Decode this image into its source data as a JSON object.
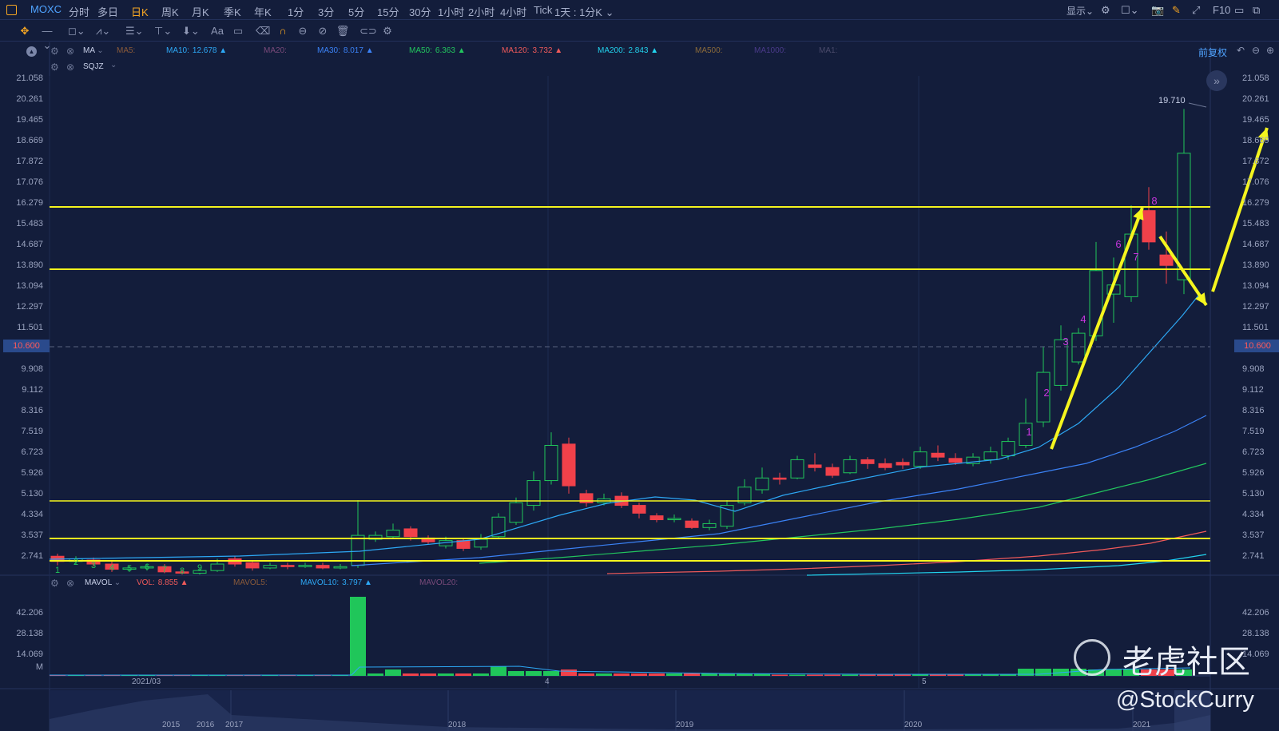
{
  "toolbar": {
    "symbol": "MOXC",
    "timeframes": [
      {
        "label": "分时",
        "active": false
      },
      {
        "label": "多日",
        "active": false
      },
      {
        "label": "日K",
        "active": true
      },
      {
        "label": "周K",
        "active": false
      },
      {
        "label": "月K",
        "active": false
      },
      {
        "label": "季K",
        "active": false
      },
      {
        "label": "年K",
        "active": false
      },
      {
        "label": "1分",
        "active": false
      },
      {
        "label": "3分",
        "active": false
      },
      {
        "label": "5分",
        "active": false
      },
      {
        "label": "15分",
        "active": false
      },
      {
        "label": "30分",
        "active": false
      },
      {
        "label": "1小时",
        "active": false
      },
      {
        "label": "2小时",
        "active": false
      },
      {
        "label": "4小时",
        "active": false
      },
      {
        "label": "Tick",
        "active": false
      }
    ],
    "interval_label": "1天 : 1分K",
    "display_label": "显示",
    "f10_label": "F10",
    "adjust_label": "前复权"
  },
  "indicators": {
    "ma": [
      {
        "name": "MA",
        "value": "",
        "color": "#c8d0e8"
      },
      {
        "name": "MA5:",
        "value": "",
        "color": "#8a5a3a"
      },
      {
        "name": "MA10:",
        "value": "12.678",
        "color": "#2da8f5"
      },
      {
        "name": "MA20:",
        "value": "",
        "color": "#7a4a7a"
      },
      {
        "name": "MA30:",
        "value": "8.017",
        "color": "#3b82f6"
      },
      {
        "name": "MA50:",
        "value": "6.363",
        "color": "#22c55e"
      },
      {
        "name": "MA120:",
        "value": "3.732",
        "color": "#f05a5a"
      },
      {
        "name": "MA200:",
        "value": "2.843",
        "color": "#22d3ee"
      },
      {
        "name": "MA500:",
        "value": "",
        "color": "#8a6a3a"
      },
      {
        "name": "MA1000:",
        "value": "",
        "color": "#4a3a8a"
      },
      {
        "name": "MA1:",
        "value": "",
        "color": "#4a4a6a"
      }
    ],
    "sqjz": "SQJZ",
    "vol": [
      {
        "name": "MAVOL",
        "value": "",
        "color": "#c8d0e8"
      },
      {
        "name": "VOL:",
        "value": "8.855",
        "color": "#f05a5a"
      },
      {
        "name": "MAVOL5:",
        "value": "",
        "color": "#8a5a3a"
      },
      {
        "name": "MAVOL10:",
        "value": "3.797",
        "color": "#2da8f5"
      },
      {
        "name": "MAVOL20:",
        "value": "",
        "color": "#7a4a7a"
      }
    ]
  },
  "price_axis": [
    "21.058",
    "20.261",
    "19.465",
    "18.669",
    "17.872",
    "17.076",
    "16.279",
    "15.483",
    "14.687",
    "13.890",
    "13.094",
    "12.297",
    "11.501",
    "10.600",
    "9.908",
    "9.112",
    "8.316",
    "7.519",
    "6.723",
    "5.926",
    "5.130",
    "4.334",
    "3.537",
    "2.741"
  ],
  "current_price": "10.600",
  "volume_axis": [
    "42.206",
    "28.138",
    "14.069",
    "M"
  ],
  "time_axis": [
    "2021/03",
    "4",
    "5"
  ],
  "overview_years": [
    "2015",
    "2016",
    "2017",
    "2018",
    "2019",
    "2020",
    "2021"
  ],
  "high_label": "19.710",
  "td_counts": [
    "1",
    "2",
    "3",
    "4",
    "5",
    "6",
    "7",
    "8",
    "9",
    "1",
    "2",
    "3",
    "4",
    "6",
    "7",
    "8"
  ],
  "watermark": {
    "brand": "老虎社区",
    "handle": "@StockCurry"
  },
  "colors": {
    "up": "#20c65a",
    "down": "#f0414a",
    "bg": "#131d3b",
    "annotation": "#f5f51e"
  }
}
